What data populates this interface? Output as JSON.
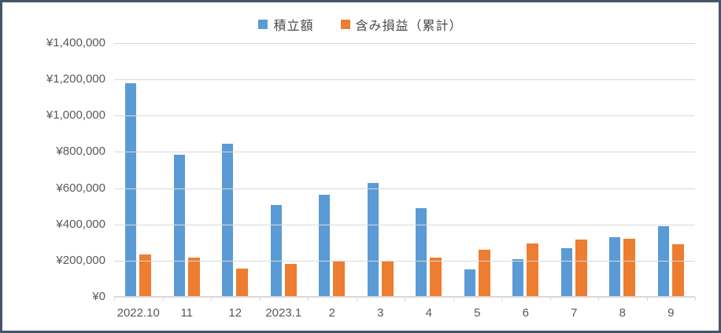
{
  "chart_data": {
    "type": "bar",
    "title": "",
    "xlabel": "",
    "ylabel": "",
    "categories": [
      "2022.10",
      "11",
      "12",
      "2023.1",
      "2",
      "3",
      "4",
      "5",
      "6",
      "7",
      "8",
      "9"
    ],
    "series": [
      {
        "key": "tsumitate",
        "name": "積立額",
        "color": "#5B9BD5",
        "values": [
          1180000,
          785000,
          845000,
          505000,
          565000,
          630000,
          490000,
          150000,
          210000,
          270000,
          330000,
          390000
        ]
      },
      {
        "key": "unrealized-gain-cumulative",
        "name": "含み損益（累計）",
        "color": "#ED7D31",
        "values": [
          235000,
          215000,
          155000,
          180000,
          195000,
          200000,
          215000,
          260000,
          295000,
          315000,
          320000,
          290000
        ]
      }
    ],
    "ylim": [
      0,
      1400000
    ],
    "ytick_step": 200000,
    "ytick_labels": [
      "¥0",
      "¥200,000",
      "¥400,000",
      "¥600,000",
      "¥800,000",
      "¥1,000,000",
      "¥1,200,000",
      "¥1,400,000"
    ],
    "grid": true,
    "legend_position": "top-center"
  },
  "colors": {
    "series_blue": "#5B9BD5",
    "series_orange": "#ED7D31",
    "frame_border": "#44546A",
    "gridline": "#D9D9D9",
    "axis_text": "#595959",
    "legend_text": "#4a4a4a",
    "background": "#FFFFFF"
  }
}
